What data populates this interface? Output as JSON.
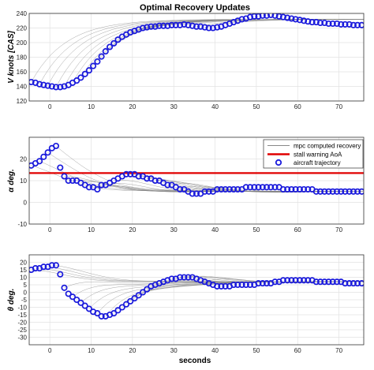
{
  "figure": {
    "title": "Optimal Recovery Updates",
    "xlabel": "seconds"
  },
  "colors": {
    "trajectory_marker": "#1a1adc",
    "stall_line": "#e00000",
    "mpc_lines": "#808080"
  },
  "legend": {
    "items": [
      "mpc computed recovery",
      "stall warning AoA",
      "aircraft trajectory"
    ]
  },
  "chart_data": [
    {
      "type": "line",
      "title": "Optimal Recovery Updates",
      "ylabel": "V knots [CAS]",
      "xlabel": "",
      "xlim": [
        -5,
        76
      ],
      "ylim": [
        120,
        240
      ],
      "xticks": [
        0,
        10,
        20,
        30,
        40,
        50,
        60,
        70
      ],
      "yticks": [
        120,
        140,
        160,
        180,
        200,
        220,
        240
      ],
      "grid": true,
      "series": [
        {
          "name": "aircraft trajectory",
          "marker": "circle",
          "x": [
            -4.5,
            -3.5,
            -2.5,
            -1.5,
            -0.5,
            0.5,
            1.5,
            2.5,
            3.5,
            4.5,
            5.5,
            6.5,
            7.5,
            8.5,
            9.5,
            10.5,
            11.5,
            12.5,
            13.5,
            14.5,
            15.5,
            16.5,
            17.5,
            18.5,
            19.5,
            20.5,
            21.5,
            22.5,
            23.5,
            24.5,
            25.5,
            26.5,
            27.5,
            28.5,
            29.5,
            30.5,
            31.5,
            32.5,
            33.5,
            34.5,
            35.5,
            36.5,
            37.5,
            38.5,
            39.5,
            40.5,
            41.5,
            42.5,
            43.5,
            44.5,
            45.5,
            46.5,
            47.5,
            48.5,
            49.5,
            50.5,
            51.5,
            52.5,
            53.5,
            54.5,
            55.5,
            56.5,
            57.5,
            58.5,
            59.5,
            60.5,
            61.5,
            62.5,
            63.5,
            64.5,
            65.5,
            66.5,
            67.5,
            68.5,
            69.5,
            70.5,
            71.5,
            72.5,
            73.5,
            74.5,
            75.5
          ],
          "y": [
            146,
            145,
            143,
            142,
            141,
            140,
            139,
            139,
            140,
            142,
            145,
            148,
            152,
            157,
            162,
            168,
            174,
            181,
            188,
            194,
            199,
            204,
            208,
            211,
            214,
            216,
            218,
            220,
            221,
            222,
            222,
            223,
            223,
            223,
            224,
            224,
            224,
            225,
            224,
            223,
            222,
            222,
            221,
            220,
            220,
            221,
            222,
            224,
            226,
            228,
            230,
            232,
            233,
            235,
            236,
            236,
            237,
            237,
            238,
            237,
            236,
            235,
            234,
            233,
            232,
            231,
            230,
            229,
            228,
            228,
            227,
            227,
            226,
            226,
            226,
            225,
            225,
            225,
            224,
            224,
            224
          ]
        }
      ],
      "mpc_family": {
        "name": "mpc computed recovery",
        "count": 22,
        "style": "thin grey lines",
        "end_value": 232
      }
    },
    {
      "type": "line",
      "ylabel": "α deg.",
      "xlabel": "",
      "xlim": [
        -5,
        76
      ],
      "ylim": [
        -10,
        30
      ],
      "xticks": [
        0,
        10,
        20,
        30,
        40,
        50,
        60,
        70
      ],
      "yticks": [
        -10,
        0,
        10,
        20
      ],
      "grid": true,
      "legend_position": "top-right",
      "stall_warning_aoa": 13.5,
      "series": [
        {
          "name": "aircraft trajectory",
          "marker": "circle",
          "x": [
            -4.5,
            -3.5,
            -2.5,
            -1.5,
            -0.5,
            0.5,
            1.5,
            2.5,
            3.5,
            4.5,
            5.5,
            6.5,
            7.5,
            8.5,
            9.5,
            10.5,
            11.5,
            12.5,
            13.5,
            14.5,
            15.5,
            16.5,
            17.5,
            18.5,
            19.5,
            20.5,
            21.5,
            22.5,
            23.5,
            24.5,
            25.5,
            26.5,
            27.5,
            28.5,
            29.5,
            30.5,
            31.5,
            32.5,
            33.5,
            34.5,
            35.5,
            36.5,
            37.5,
            38.5,
            39.5,
            40.5,
            41.5,
            42.5,
            43.5,
            44.5,
            45.5,
            46.5,
            47.5,
            48.5,
            49.5,
            50.5,
            51.5,
            52.5,
            53.5,
            54.5,
            55.5,
            56.5,
            57.5,
            58.5,
            59.5,
            60.5,
            61.5,
            62.5,
            63.5,
            64.5,
            65.5,
            66.5,
            67.5,
            68.5,
            69.5,
            70.5,
            71.5,
            72.5,
            73.5,
            74.5,
            75.5
          ],
          "y": [
            17,
            18,
            19,
            21,
            23,
            25,
            26,
            16,
            12,
            10,
            10,
            10,
            9,
            8,
            7,
            7,
            6,
            8,
            8,
            9,
            10,
            11,
            12,
            13,
            13,
            13,
            12,
            12,
            11,
            11,
            10,
            10,
            9,
            8,
            8,
            7,
            6,
            6,
            5,
            4,
            4,
            4,
            5,
            5,
            5,
            6,
            6,
            6,
            6,
            6,
            6,
            6,
            7,
            7,
            7,
            7,
            7,
            7,
            7,
            7,
            7,
            6,
            6,
            6,
            6,
            6,
            6,
            6,
            6,
            5,
            5,
            5,
            5,
            5,
            5,
            5,
            5,
            5,
            5,
            5,
            5
          ]
        }
      ],
      "mpc_family": {
        "name": "mpc computed recovery",
        "count": 22,
        "style": "thin grey lines",
        "end_value": 5
      }
    },
    {
      "type": "line",
      "ylabel": "θ deg.",
      "xlabel": "seconds",
      "xlim": [
        -5,
        76
      ],
      "ylim": [
        -35,
        25
      ],
      "xticks": [
        0,
        10,
        20,
        30,
        40,
        50,
        60,
        70
      ],
      "yticks": [
        -30,
        -25,
        -20,
        -15,
        -10,
        -5,
        0,
        5,
        10,
        15,
        20
      ],
      "grid": true,
      "series": [
        {
          "name": "aircraft trajectory",
          "marker": "circle",
          "x": [
            -4.5,
            -3.5,
            -2.5,
            -1.5,
            -0.5,
            0.5,
            1.5,
            2.5,
            3.5,
            4.5,
            5.5,
            6.5,
            7.5,
            8.5,
            9.5,
            10.5,
            11.5,
            12.5,
            13.5,
            14.5,
            15.5,
            16.5,
            17.5,
            18.5,
            19.5,
            20.5,
            21.5,
            22.5,
            23.5,
            24.5,
            25.5,
            26.5,
            27.5,
            28.5,
            29.5,
            30.5,
            31.5,
            32.5,
            33.5,
            34.5,
            35.5,
            36.5,
            37.5,
            38.5,
            39.5,
            40.5,
            41.5,
            42.5,
            43.5,
            44.5,
            45.5,
            46.5,
            47.5,
            48.5,
            49.5,
            50.5,
            51.5,
            52.5,
            53.5,
            54.5,
            55.5,
            56.5,
            57.5,
            58.5,
            59.5,
            60.5,
            61.5,
            62.5,
            63.5,
            64.5,
            65.5,
            66.5,
            67.5,
            68.5,
            69.5,
            70.5,
            71.5,
            72.5,
            73.5,
            74.5,
            75.5
          ],
          "y": [
            15,
            16,
            16,
            17,
            17,
            18,
            18,
            12,
            3,
            -1,
            -3,
            -5,
            -7,
            -9,
            -11,
            -13,
            -14,
            -16,
            -16,
            -15,
            -14,
            -12,
            -10,
            -8,
            -6,
            -4,
            -2,
            0,
            2,
            4,
            5,
            6,
            7,
            8,
            9,
            9,
            10,
            10,
            10,
            10,
            9,
            8,
            7,
            6,
            5,
            4,
            4,
            4,
            4,
            5,
            5,
            5,
            5,
            5,
            5,
            6,
            6,
            6,
            6,
            7,
            7,
            8,
            8,
            8,
            8,
            8,
            8,
            8,
            8,
            7,
            7,
            7,
            7,
            7,
            7,
            7,
            6,
            6,
            6,
            6,
            6
          ]
        }
      ],
      "mpc_family": {
        "name": "mpc computed recovery",
        "count": 22,
        "style": "thin grey lines",
        "end_value": 7
      }
    }
  ]
}
